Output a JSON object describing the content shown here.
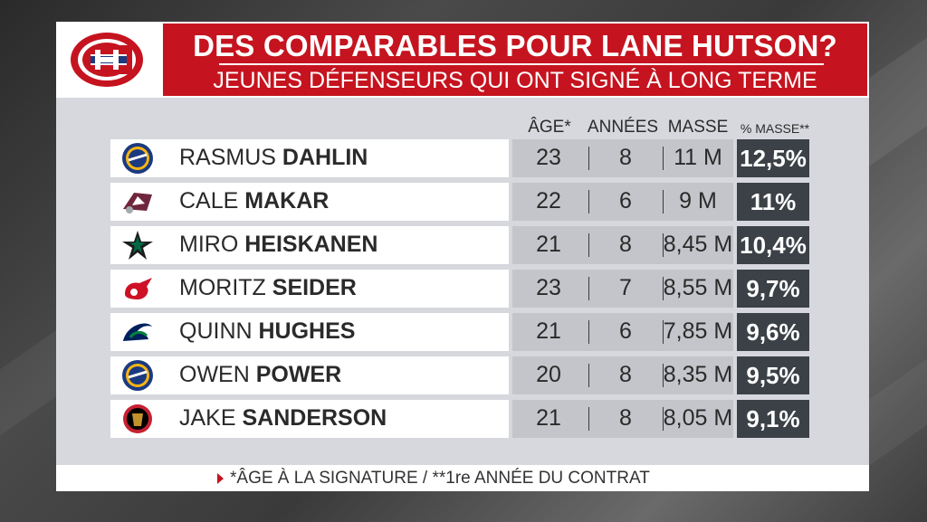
{
  "header": {
    "title": "DES COMPARABLES POUR LANE HUTSON?",
    "subtitle": "JEUNES DÉFENSEURS QUI ONT SIGNÉ À LONG TERME",
    "logo": "montreal-canadiens-logo"
  },
  "columns": {
    "age": "ÂGE*",
    "years": "ANNÉES",
    "cap": "MASSE",
    "cap_pct": "% MASSE**"
  },
  "players": [
    {
      "first": "RASMUS",
      "last": "DAHLIN",
      "team_logo": "buffalo-sabres-logo",
      "age": "23",
      "years": "8",
      "cap": "11 M",
      "pct": "12,5%"
    },
    {
      "first": "CALE",
      "last": "MAKAR",
      "team_logo": "colorado-avalanche-logo",
      "age": "22",
      "years": "6",
      "cap": "9 M",
      "pct": "11%"
    },
    {
      "first": "MIRO",
      "last": "HEISKANEN",
      "team_logo": "dallas-stars-logo",
      "age": "21",
      "years": "8",
      "cap": "8,45 M",
      "pct": "10,4%"
    },
    {
      "first": "MORITZ",
      "last": "SEIDER",
      "team_logo": "detroit-red-wings-logo",
      "age": "23",
      "years": "7",
      "cap": "8,55 M",
      "pct": "9,7%"
    },
    {
      "first": "QUINN",
      "last": "HUGHES",
      "team_logo": "vancouver-canucks-logo",
      "age": "21",
      "years": "6",
      "cap": "7,85 M",
      "pct": "9,6%"
    },
    {
      "first": "OWEN",
      "last": "POWER",
      "team_logo": "buffalo-sabres-logo",
      "age": "20",
      "years": "8",
      "cap": "8,35 M",
      "pct": "9,5%"
    },
    {
      "first": "JAKE",
      "last": "SANDERSON",
      "team_logo": "ottawa-senators-logo",
      "age": "21",
      "years": "8",
      "cap": "8,05 M",
      "pct": "9,1%"
    }
  ],
  "footer": {
    "note": "*ÂGE À LA SIGNATURE  /  **1re ANNÉE DU CONTRAT"
  },
  "colors": {
    "accent_red": "#c5141f",
    "pct_bg": "#3b4147",
    "panel_bg": "#d6d8dd"
  }
}
